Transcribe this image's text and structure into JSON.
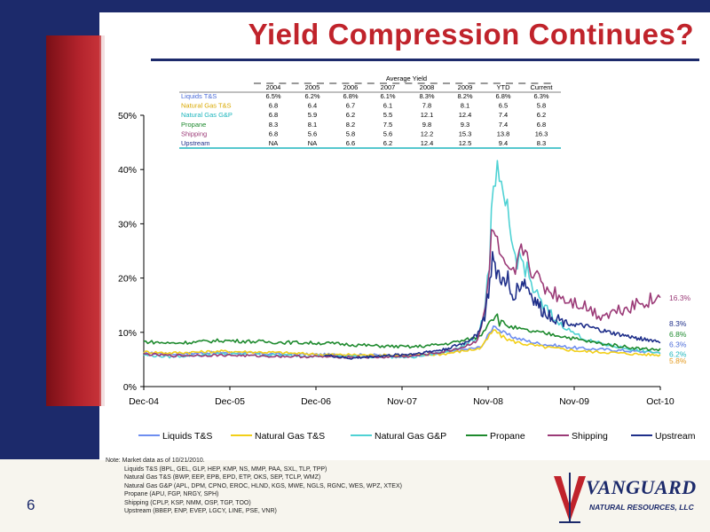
{
  "slide": {
    "title": "Yield Compression Continues?",
    "page_number": "6"
  },
  "colors": {
    "navy": "#1c2a6b",
    "red": "#c0232b",
    "series": {
      "Liquids T&S": "#6e8ef0",
      "Natural  Gas T&S": "#f2cf18",
      "Natural Gas G&P": "#4fd2d4",
      "Propane": "#1e8a2e",
      "Shipping": "#9b3a77",
      "Upstream": "#1f2f8a"
    }
  },
  "table": {
    "group_header": "Average Yield",
    "columns": [
      "2004",
      "2005",
      "2006",
      "2007",
      "2008",
      "2009",
      "YTD",
      "Current"
    ],
    "rows": [
      {
        "label": "Liquids T&S",
        "color": "#4a6bd8",
        "values": [
          "6.5%",
          "6.2%",
          "6.8%",
          "6.1%",
          "8.3%",
          "8.2%",
          "6.8%",
          "6.3%"
        ]
      },
      {
        "label": "Natural  Gas T&S",
        "color": "#d9a800",
        "values": [
          "6.8",
          "6.4",
          "6.7",
          "6.1",
          "7.8",
          "8.1",
          "6.5",
          "5.8"
        ]
      },
      {
        "label": "Natural Gas G&P",
        "color": "#1fb6bd",
        "values": [
          "6.8",
          "5.9",
          "6.2",
          "5.5",
          "12.1",
          "12.4",
          "7.4",
          "6.2"
        ]
      },
      {
        "label": "Propane",
        "color": "#1e8a2e",
        "values": [
          "8.3",
          "8.1",
          "8.2",
          "7.5",
          "9.8",
          "9.3",
          "7.4",
          "6.8"
        ]
      },
      {
        "label": "Shipping",
        "color": "#9b3a77",
        "values": [
          "6.8",
          "5.6",
          "5.8",
          "5.6",
          "12.2",
          "15.3",
          "13.8",
          "16.3"
        ]
      },
      {
        "label": "Upstream",
        "color": "#1f2f8a",
        "values": [
          "NA",
          "NA",
          "6.6",
          "6.2",
          "12.4",
          "12.5",
          "9.4",
          "8.3"
        ]
      }
    ]
  },
  "chart_data": {
    "type": "line",
    "x_start": "2004-12-01",
    "x_end": "2010-10-21",
    "x_ticks": [
      "Dec-04",
      "Dec-05",
      "Dec-06",
      "Nov-07",
      "Nov-08",
      "Nov-09",
      "Oct-10"
    ],
    "y_ticks": [
      "0%",
      "10%",
      "20%",
      "30%",
      "40%",
      "50%"
    ],
    "ylim": [
      0,
      50
    ],
    "legend_position": "bottom",
    "series": [
      {
        "name": "Liquids T&S",
        "anchors": [
          [
            0,
            6.2
          ],
          [
            0.05,
            6.0
          ],
          [
            0.15,
            6.3
          ],
          [
            0.25,
            6.0
          ],
          [
            0.35,
            5.9
          ],
          [
            0.45,
            5.8
          ],
          [
            0.52,
            5.6
          ],
          [
            0.58,
            6.2
          ],
          [
            0.62,
            6.8
          ],
          [
            0.65,
            7.2
          ],
          [
            0.66,
            8.2
          ],
          [
            0.67,
            10.0
          ],
          [
            0.68,
            11.5
          ],
          [
            0.69,
            10.2
          ],
          [
            0.71,
            9.3
          ],
          [
            0.73,
            8.7
          ],
          [
            0.76,
            8.0
          ],
          [
            0.8,
            7.5
          ],
          [
            0.85,
            7.0
          ],
          [
            0.9,
            6.8
          ],
          [
            0.95,
            6.5
          ],
          [
            1,
            6.3
          ]
        ]
      },
      {
        "name": "Natural  Gas T&S",
        "anchors": [
          [
            0,
            6.4
          ],
          [
            0.05,
            6.2
          ],
          [
            0.15,
            6.5
          ],
          [
            0.25,
            6.3
          ],
          [
            0.35,
            5.9
          ],
          [
            0.45,
            5.8
          ],
          [
            0.52,
            5.7
          ],
          [
            0.58,
            6.0
          ],
          [
            0.62,
            6.6
          ],
          [
            0.65,
            7.0
          ],
          [
            0.66,
            8.0
          ],
          [
            0.67,
            9.5
          ],
          [
            0.68,
            10.5
          ],
          [
            0.69,
            9.4
          ],
          [
            0.71,
            8.5
          ],
          [
            0.73,
            8.0
          ],
          [
            0.76,
            7.5
          ],
          [
            0.8,
            7.0
          ],
          [
            0.85,
            6.5
          ],
          [
            0.9,
            6.3
          ],
          [
            0.95,
            6.0
          ],
          [
            1,
            5.8
          ]
        ]
      },
      {
        "name": "Natural Gas G&P",
        "anchors": [
          [
            0,
            5.8
          ],
          [
            0.05,
            5.5
          ],
          [
            0.15,
            6.0
          ],
          [
            0.25,
            5.8
          ],
          [
            0.35,
            5.6
          ],
          [
            0.45,
            5.5
          ],
          [
            0.52,
            5.4
          ],
          [
            0.58,
            6.3
          ],
          [
            0.62,
            7.5
          ],
          [
            0.645,
            9.0
          ],
          [
            0.66,
            14.0
          ],
          [
            0.67,
            24.0
          ],
          [
            0.675,
            35.0
          ],
          [
            0.68,
            33.0
          ],
          [
            0.685,
            42.0
          ],
          [
            0.69,
            36.0
          ],
          [
            0.7,
            31.0
          ],
          [
            0.705,
            34.0
          ],
          [
            0.71,
            27.0
          ],
          [
            0.72,
            24.0
          ],
          [
            0.735,
            23.0
          ],
          [
            0.75,
            19.0
          ],
          [
            0.77,
            15.0
          ],
          [
            0.8,
            12.0
          ],
          [
            0.83,
            10.0
          ],
          [
            0.86,
            8.5
          ],
          [
            0.9,
            7.6
          ],
          [
            0.95,
            6.8
          ],
          [
            1,
            6.2
          ]
        ]
      },
      {
        "name": "Propane",
        "anchors": [
          [
            0,
            8.3
          ],
          [
            0.05,
            8.0
          ],
          [
            0.1,
            8.2
          ],
          [
            0.15,
            8.5
          ],
          [
            0.25,
            8.2
          ],
          [
            0.35,
            8.0
          ],
          [
            0.45,
            7.5
          ],
          [
            0.52,
            7.3
          ],
          [
            0.58,
            7.8
          ],
          [
            0.62,
            8.5
          ],
          [
            0.65,
            9.2
          ],
          [
            0.66,
            10.5
          ],
          [
            0.67,
            12.5
          ],
          [
            0.68,
            13.5
          ],
          [
            0.69,
            12.0
          ],
          [
            0.71,
            11.0
          ],
          [
            0.73,
            10.5
          ],
          [
            0.76,
            10.0
          ],
          [
            0.8,
            9.5
          ],
          [
            0.85,
            8.5
          ],
          [
            0.88,
            8.0
          ],
          [
            0.92,
            7.5
          ],
          [
            0.96,
            7.0
          ],
          [
            1,
            6.8
          ]
        ]
      },
      {
        "name": "Shipping",
        "anchors": [
          [
            0,
            6.0
          ],
          [
            0.05,
            5.7
          ],
          [
            0.15,
            5.8
          ],
          [
            0.25,
            5.6
          ],
          [
            0.35,
            5.5
          ],
          [
            0.45,
            5.4
          ],
          [
            0.52,
            5.6
          ],
          [
            0.58,
            6.4
          ],
          [
            0.62,
            7.3
          ],
          [
            0.645,
            8.5
          ],
          [
            0.66,
            13.0
          ],
          [
            0.67,
            22.0
          ],
          [
            0.675,
            32.0
          ],
          [
            0.68,
            27.0
          ],
          [
            0.69,
            24.0
          ],
          [
            0.7,
            21.0
          ],
          [
            0.71,
            20.0
          ],
          [
            0.72,
            21.0
          ],
          [
            0.735,
            26.0
          ],
          [
            0.75,
            22.0
          ],
          [
            0.76,
            20.0
          ],
          [
            0.78,
            18.0
          ],
          [
            0.8,
            17.0
          ],
          [
            0.82,
            16.0
          ],
          [
            0.84,
            15.5
          ],
          [
            0.86,
            14.5
          ],
          [
            0.88,
            13.2
          ],
          [
            0.9,
            13.5
          ],
          [
            0.93,
            14.5
          ],
          [
            0.96,
            15.5
          ],
          [
            1,
            16.3
          ]
        ]
      },
      {
        "name": "Upstream",
        "anchors": [
          [
            0.35,
            5.8
          ],
          [
            0.4,
            5.2
          ],
          [
            0.45,
            5.6
          ],
          [
            0.52,
            6.0
          ],
          [
            0.58,
            6.8
          ],
          [
            0.62,
            8.0
          ],
          [
            0.645,
            9.5
          ],
          [
            0.66,
            13.0
          ],
          [
            0.67,
            19.0
          ],
          [
            0.675,
            24.0
          ],
          [
            0.68,
            21.0
          ],
          [
            0.69,
            20.5
          ],
          [
            0.7,
            18.0
          ],
          [
            0.705,
            20.0
          ],
          [
            0.71,
            17.0
          ],
          [
            0.72,
            17.5
          ],
          [
            0.735,
            19.5
          ],
          [
            0.75,
            17.0
          ],
          [
            0.77,
            14.0
          ],
          [
            0.8,
            12.5
          ],
          [
            0.83,
            11.5
          ],
          [
            0.86,
            11.0
          ],
          [
            0.9,
            10.0
          ],
          [
            0.95,
            9.0
          ],
          [
            1,
            8.3
          ]
        ]
      }
    ],
    "end_labels": [
      {
        "text": "16.3%",
        "color": "#9b3a77",
        "y": 16.3
      },
      {
        "text": "8.3%",
        "color": "#1f2f8a",
        "y": 11.6
      },
      {
        "text": "6.8%",
        "color": "#1e8a2e",
        "y": 9.6
      },
      {
        "text": "6.3%",
        "color": "#4a6bd8",
        "y": 7.8
      },
      {
        "text": "6.2%",
        "color": "#1fb6bd",
        "y": 6.0
      },
      {
        "text": "5.8%",
        "color": "#e39a20",
        "y": 4.7
      }
    ],
    "legend": [
      "Liquids T&S",
      "Natural  Gas T&S",
      "Natural Gas G&P",
      "Propane",
      "Shipping",
      "Upstream"
    ]
  },
  "note": {
    "heading": "Note: Market data as of 10/21/2010.",
    "lines": [
      "Liquids T&S (BPL, GEL, GLP, HEP, KMP, NS, MMP, PAA, SXL, TLP, TPP)",
      "Natural Gas T&S (BWP, EEP, EPB, EPD, ETP, OKS, SEP, TCLP, WMZ)",
      "Natural Gas G&P (APL, DPM, CPNO, EROC, HLND, KGS, MWE, NGLS, RGNC, WES, WPZ, XTEX)",
      "Propane (APU, FGP, NRGY, SPH)",
      "Shipping (CPLP, KSP, NMM, OSP, TGP, TOO)",
      "Upstream (BBEP, ENP, EVEP, LGCY, LINE, PSE, VNR)"
    ]
  },
  "logo": {
    "name": "VANGUARD",
    "sub": "NATURAL RESOURCES, LLC"
  }
}
